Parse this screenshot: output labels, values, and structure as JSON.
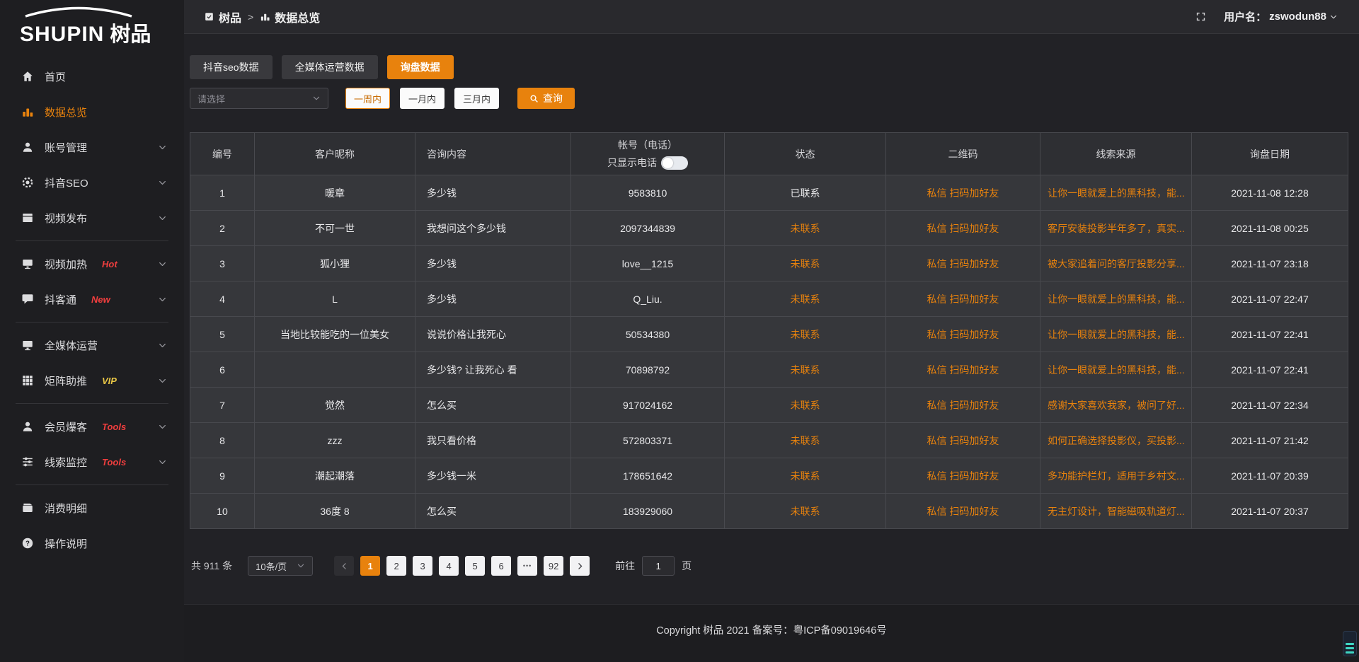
{
  "logo": {
    "text_en": "SHUPIN",
    "text_cn": "树品"
  },
  "header": {
    "breadcrumb": {
      "root": "树品",
      "separator": ">",
      "current": "数据总览"
    },
    "user_label": "用户名：",
    "username": "zswodun88"
  },
  "sidebar": {
    "items": [
      {
        "label": "首页",
        "icon": "home"
      },
      {
        "label": "数据总览",
        "icon": "bar-chart",
        "active": true
      },
      {
        "label": "账号管理",
        "icon": "user",
        "chevron": true
      },
      {
        "label": "抖音SEO",
        "icon": "gear",
        "chevron": true
      },
      {
        "label": "视频发布",
        "icon": "video-publish",
        "chevron": true,
        "divider_after": true
      },
      {
        "label": "视频加热",
        "icon": "monitor-hot",
        "chevron": true,
        "badge": "Hot"
      },
      {
        "label": "抖客通",
        "icon": "chat",
        "chevron": true,
        "badge": "New",
        "divider_after": true
      },
      {
        "label": "全媒体运营",
        "icon": "monitor",
        "chevron": true
      },
      {
        "label": "矩阵助推",
        "icon": "grid",
        "chevron": true,
        "badge": "VIP",
        "badge_yellow": true,
        "divider_after": true
      },
      {
        "label": "会员爆客",
        "icon": "user-group",
        "chevron": true,
        "badge": "Tools"
      },
      {
        "label": "线索监控",
        "icon": "sliders",
        "chevron": true,
        "badge": "Tools",
        "divider_after": true
      },
      {
        "label": "消费明细",
        "icon": "wallet"
      },
      {
        "label": "操作说明",
        "icon": "help"
      }
    ]
  },
  "tabs": [
    {
      "label": "抖音seo数据"
    },
    {
      "label": "全媒体运营数据"
    },
    {
      "label": "询盘数据",
      "active": true
    }
  ],
  "filters": {
    "select_placeholder": "请选择",
    "time_ranges": [
      {
        "label": "一周内",
        "selected": true
      },
      {
        "label": "一月内"
      },
      {
        "label": "三月内"
      }
    ],
    "search_label": "查询"
  },
  "table": {
    "columns": {
      "no": "编号",
      "nickname": "客户昵称",
      "content": "咨询内容",
      "account": "帐号（电话）",
      "account_toggle": "只显示电话",
      "status": "状态",
      "qrcode": "二维码",
      "source": "线索来源",
      "date": "询盘日期"
    },
    "rows": [
      {
        "no": "1",
        "nickname": "暖章",
        "content": "多少钱",
        "account": "9583810",
        "status": "已联系",
        "qr": "私信 扫码加好友",
        "source": "让你一眼就爱上的黑科技，能...",
        "date": "2021-11-08 12:28"
      },
      {
        "no": "2",
        "nickname": "不可一世",
        "content": "我想问这个多少钱",
        "account": "2097344839",
        "status": "未联系",
        "pending": true,
        "qr": "私信 扫码加好友",
        "source": "客厅安装投影半年多了，真实...",
        "date": "2021-11-08 00:25"
      },
      {
        "no": "3",
        "nickname": "狐小狸",
        "content": "多少钱",
        "account": "love__1215",
        "status": "未联系",
        "pending": true,
        "qr": "私信 扫码加好友",
        "source": "被大家追着问的客厅投影分享...",
        "date": "2021-11-07 23:18"
      },
      {
        "no": "4",
        "nickname": "L",
        "content": "多少钱",
        "account": "Q_Liu.",
        "status": "未联系",
        "pending": true,
        "qr": "私信 扫码加好友",
        "source": "让你一眼就爱上的黑科技，能...",
        "date": "2021-11-07 22:47"
      },
      {
        "no": "5",
        "nickname": "当地比较能吃的一位美女",
        "content": "说说价格让我死心",
        "account": "50534380",
        "status": "未联系",
        "pending": true,
        "qr": "私信 扫码加好友",
        "source": "让你一眼就爱上的黑科技，能...",
        "date": "2021-11-07 22:41"
      },
      {
        "no": "6",
        "nickname": "",
        "content": "多少钱? 让我死心 看",
        "account": "70898792",
        "status": "未联系",
        "pending": true,
        "qr": "私信 扫码加好友",
        "source": "让你一眼就爱上的黑科技，能...",
        "date": "2021-11-07 22:41"
      },
      {
        "no": "7",
        "nickname": "觉然",
        "content": "怎么买",
        "account": "917024162",
        "status": "未联系",
        "pending": true,
        "qr": "私信 扫码加好友",
        "source": "感谢大家喜欢我家，被问了好...",
        "date": "2021-11-07 22:34"
      },
      {
        "no": "8",
        "nickname": "zzz",
        "content": "我只看价格",
        "account": "572803371",
        "status": "未联系",
        "pending": true,
        "qr": "私信 扫码加好友",
        "source": "如何正确选择投影仪，买投影...",
        "date": "2021-11-07 21:42"
      },
      {
        "no": "9",
        "nickname": "潮起潮落",
        "content": "多少钱一米",
        "account": "178651642",
        "status": "未联系",
        "pending": true,
        "qr": "私信 扫码加好友",
        "source": "多功能护栏灯，适用于乡村文...",
        "date": "2021-11-07 20:39"
      },
      {
        "no": "10",
        "nickname": "36度 8",
        "content": "怎么买",
        "account": "183929060",
        "status": "未联系",
        "pending": true,
        "qr": "私信 扫码加好友",
        "source": "无主灯设计，智能磁吸轨道灯...",
        "date": "2021-11-07 20:37"
      }
    ]
  },
  "pagination": {
    "total": "共 911 条",
    "page_size": "10条/页",
    "pages": [
      {
        "label": "1",
        "active": true
      },
      {
        "label": "2"
      },
      {
        "label": "3"
      },
      {
        "label": "4"
      },
      {
        "label": "5"
      },
      {
        "label": "6"
      },
      {
        "label": "•••",
        "ellipsis": true
      },
      {
        "label": "92"
      }
    ],
    "goto_label": "前往",
    "goto_value": "1",
    "goto_unit": "页"
  },
  "footer": {
    "copyright": "Copyright 树品 2021 备案号：粤ICP备09019646号"
  },
  "colors": {
    "accent": "#e8820d",
    "link": "#e8820d",
    "badge_hot": "#f03e3e",
    "badge_vip": "#e7c545",
    "status_pending": "#e8820d"
  }
}
